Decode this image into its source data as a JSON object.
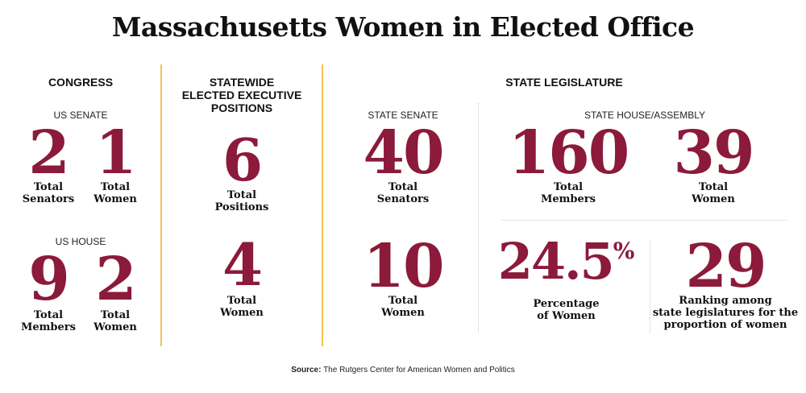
{
  "title": "Massachusetts Women in Elected Office",
  "congress": {
    "heading": "CONGRESS",
    "us_senate": {
      "heading": "US SENATE",
      "total": {
        "value": "2",
        "label_line1": "Total",
        "label_line2": "Senators"
      },
      "women": {
        "value": "1",
        "label_line1": "Total",
        "label_line2": "Women"
      }
    },
    "us_house": {
      "heading": "US HOUSE",
      "total": {
        "value": "9",
        "label_line1": "Total",
        "label_line2": "Members"
      },
      "women": {
        "value": "2",
        "label_line1": "Total",
        "label_line2": "Women"
      }
    }
  },
  "statewide": {
    "heading_line1": "STATEWIDE",
    "heading_line2": "ELECTED EXECUTIVE",
    "heading_line3": "POSITIONS",
    "total": {
      "value": "6",
      "label_line1": "Total",
      "label_line2": "Positions"
    },
    "women": {
      "value": "4",
      "label_line1": "Total",
      "label_line2": "Women"
    }
  },
  "legislature": {
    "heading": "STATE LEGISLATURE",
    "state_senate": {
      "heading": "STATE SENATE",
      "total": {
        "value": "40",
        "label_line1": "Total",
        "label_line2": "Senators"
      },
      "women": {
        "value": "10",
        "label_line1": "Total",
        "label_line2": "Women"
      }
    },
    "state_house": {
      "heading": "STATE HOUSE/ASSEMBLY",
      "total": {
        "value": "160",
        "label_line1": "Total",
        "label_line2": "Members"
      },
      "women": {
        "value": "39",
        "label_line1": "Total",
        "label_line2": "Women"
      }
    },
    "percentage": {
      "value": "24.5",
      "unit": "%",
      "label_line1": "Percentage",
      "label_line2": "of Women"
    },
    "ranking": {
      "value": "29",
      "label_line1": "Ranking among",
      "label_line2": "state legislatures for the",
      "label_line3": "proportion of women"
    }
  },
  "source": {
    "label": "Source:",
    "text": "The Rutgers Center for American Women and Politics"
  },
  "colors": {
    "accent": "#8b1a3b",
    "divider": "#f3c34d"
  }
}
